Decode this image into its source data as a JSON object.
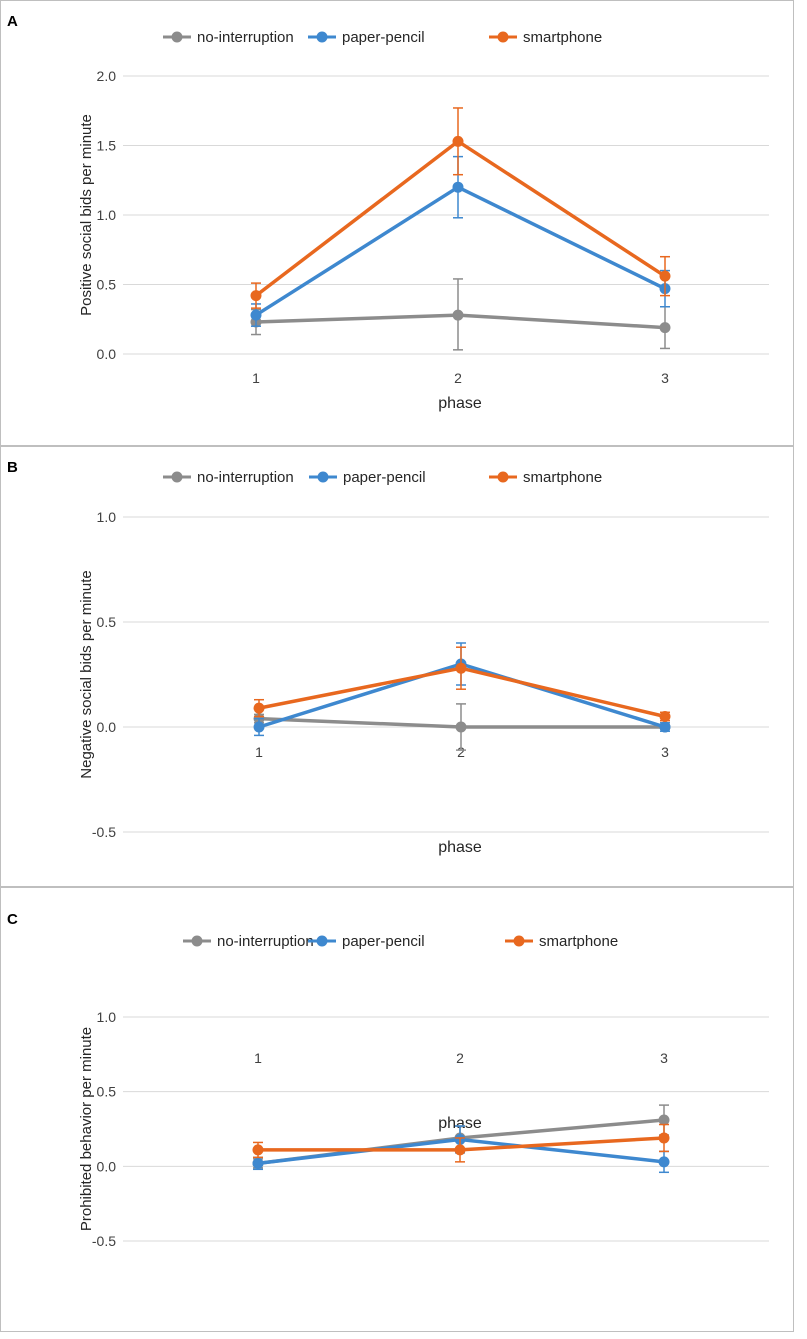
{
  "colors": {
    "no-interruption": "#8c8c8c",
    "paper-pencil": "#3e88cf",
    "smartphone": "#e8681f",
    "grid": "#d9d9d9"
  },
  "chart_data": [
    {
      "panel_label": "A",
      "type": "line",
      "categories": [
        "1",
        "2",
        "3"
      ],
      "xlabel": "phase",
      "ylabel": "Positive social bids per minute",
      "ylim": [
        0,
        2
      ],
      "yticks": [
        0,
        0.5,
        1,
        1.5,
        2
      ],
      "ytick_labels": [
        "0.0",
        "0.5",
        "1.0",
        "1.5",
        "2.0"
      ],
      "grid": true,
      "legend_position": "top",
      "series": [
        {
          "name": "no-interruption",
          "values": [
            0.23,
            0.28,
            0.19
          ],
          "err_lo": [
            0.09,
            0.25,
            0.15
          ],
          "err_hi": [
            0.09,
            0.26,
            0.15
          ]
        },
        {
          "name": "paper-pencil",
          "values": [
            0.28,
            1.2,
            0.47
          ],
          "err_lo": [
            0.08,
            0.22,
            0.13
          ],
          "err_hi": [
            0.08,
            0.22,
            0.13
          ]
        },
        {
          "name": "smartphone",
          "values": [
            0.42,
            1.53,
            0.56
          ],
          "err_lo": [
            0.09,
            0.24,
            0.14
          ],
          "err_hi": [
            0.09,
            0.24,
            0.14
          ]
        }
      ]
    },
    {
      "panel_label": "B",
      "type": "line",
      "categories": [
        "1",
        "2",
        "3"
      ],
      "xlabel": "phase",
      "ylabel": "Negative social bids per minute",
      "ylim": [
        -0.5,
        1
      ],
      "yticks": [
        -0.5,
        0,
        0.5,
        1
      ],
      "ytick_labels": [
        "-0.5",
        "0.0",
        "0.5",
        "1.0"
      ],
      "grid": true,
      "legend_position": "top",
      "series": [
        {
          "name": "no-interruption",
          "values": [
            0.04,
            0.0,
            0.0
          ],
          "err_lo": [
            0.02,
            0.11,
            0.01
          ],
          "err_hi": [
            0.02,
            0.11,
            0.01
          ]
        },
        {
          "name": "paper-pencil",
          "values": [
            0.0,
            0.3,
            0.0
          ],
          "err_lo": [
            0.04,
            0.1,
            0.02
          ],
          "err_hi": [
            0.04,
            0.1,
            0.02
          ]
        },
        {
          "name": "smartphone",
          "values": [
            0.09,
            0.28,
            0.05
          ],
          "err_lo": [
            0.04,
            0.1,
            0.02
          ],
          "err_hi": [
            0.04,
            0.1,
            0.02
          ]
        }
      ]
    },
    {
      "panel_label": "C",
      "type": "line",
      "categories": [
        "1",
        "2",
        "3"
      ],
      "xlabel": "phase",
      "ylabel": "Prohibited behavior per minute",
      "ylim": [
        -0.5,
        1
      ],
      "yticks": [
        -0.5,
        0,
        0.5,
        1
      ],
      "ytick_labels": [
        "-0.5",
        "0.0",
        "0.5",
        "1.0"
      ],
      "grid": true,
      "legend_position": "top",
      "series": [
        {
          "name": "no-interruption",
          "values": [
            0.02,
            0.19,
            0.31
          ],
          "err_lo": [
            0.03,
            0.08,
            0.1
          ],
          "err_hi": [
            0.03,
            0.08,
            0.1
          ]
        },
        {
          "name": "paper-pencil",
          "values": [
            0.02,
            0.18,
            0.03
          ],
          "err_lo": [
            0.04,
            0.09,
            0.07
          ],
          "err_hi": [
            0.04,
            0.09,
            0.07
          ]
        },
        {
          "name": "smartphone",
          "values": [
            0.11,
            0.11,
            0.19
          ],
          "err_lo": [
            0.05,
            0.08,
            0.09
          ],
          "err_hi": [
            0.05,
            0.08,
            0.09
          ]
        }
      ]
    }
  ]
}
